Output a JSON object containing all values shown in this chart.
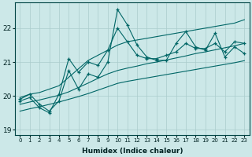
{
  "xlabel": "Humidex (Indice chaleur)",
  "ylabel": "",
  "bg_color": "#cce8e8",
  "grid_color": "#aacccc",
  "line_color": "#006666",
  "ylim": [
    18.85,
    22.75
  ],
  "xlim": [
    -0.5,
    23.5
  ],
  "yticks": [
    19,
    20,
    21,
    22
  ],
  "xticks": [
    0,
    1,
    2,
    3,
    4,
    5,
    6,
    7,
    8,
    9,
    10,
    11,
    12,
    13,
    14,
    15,
    16,
    17,
    18,
    19,
    20,
    21,
    22,
    23
  ],
  "main_data": [
    19.9,
    20.05,
    19.75,
    19.55,
    19.85,
    20.75,
    20.2,
    20.65,
    20.55,
    21.0,
    22.55,
    22.1,
    21.5,
    21.15,
    21.05,
    21.05,
    21.55,
    21.9,
    21.45,
    21.35,
    21.85,
    21.15,
    21.45,
    21.25
  ],
  "main_data2": [
    19.85,
    19.95,
    19.65,
    19.5,
    20.05,
    21.1,
    20.7,
    21.0,
    20.9,
    21.35,
    22.0,
    21.6,
    21.2,
    21.1,
    21.1,
    21.2,
    21.3,
    21.55,
    21.4,
    21.4,
    21.55,
    21.3,
    21.6,
    21.55
  ],
  "upper_line": [
    19.95,
    20.05,
    20.1,
    20.2,
    20.3,
    20.55,
    20.8,
    21.05,
    21.2,
    21.35,
    21.5,
    21.6,
    21.65,
    21.7,
    21.75,
    21.8,
    21.85,
    21.9,
    21.95,
    22.0,
    22.05,
    22.1,
    22.15,
    22.25
  ],
  "middle_line": [
    19.75,
    19.82,
    19.88,
    19.95,
    20.02,
    20.12,
    20.25,
    20.38,
    20.52,
    20.65,
    20.75,
    20.82,
    20.88,
    20.95,
    21.0,
    21.06,
    21.12,
    21.18,
    21.25,
    21.3,
    21.36,
    21.42,
    21.48,
    21.55
  ],
  "lower_line": [
    19.55,
    19.62,
    19.68,
    19.75,
    19.82,
    19.9,
    19.98,
    20.07,
    20.17,
    20.27,
    20.37,
    20.43,
    20.48,
    20.53,
    20.58,
    20.63,
    20.68,
    20.73,
    20.78,
    20.83,
    20.88,
    20.93,
    20.98,
    21.04
  ]
}
